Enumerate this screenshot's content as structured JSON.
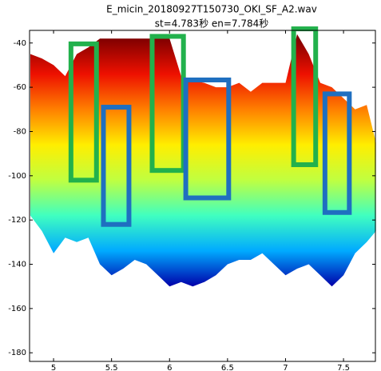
{
  "chart_data": {
    "type": "area",
    "title": "E_micin_20180927T150730_OKI_SF_A2.wav",
    "subtitle": "st=4.783秒 en=7.784秒",
    "x": [
      4.8,
      4.9,
      5.0,
      5.1,
      5.2,
      5.3,
      5.4,
      5.5,
      5.6,
      5.7,
      5.8,
      5.9,
      6.0,
      6.1,
      6.2,
      6.3,
      6.4,
      6.5,
      6.6,
      6.7,
      6.8,
      6.9,
      7.0,
      7.1,
      7.2,
      7.3,
      7.4,
      7.5,
      7.6,
      7.7,
      7.78
    ],
    "envelope": {
      "top": [
        -45,
        -47,
        -50,
        -55,
        -45,
        -42,
        -38,
        -38,
        -38,
        -38,
        -38,
        -38,
        -38,
        -55,
        -57,
        -58,
        -60,
        -60,
        -58,
        -62,
        -58,
        -58,
        -58,
        -36,
        -45,
        -58,
        -60,
        -65,
        -70,
        -68,
        -85
      ],
      "bottom": [
        -118,
        -125,
        -135,
        -128,
        -130,
        -128,
        -140,
        -145,
        -142,
        -138,
        -140,
        -145,
        -150,
        -148,
        -150,
        -148,
        -145,
        -140,
        -138,
        -138,
        -135,
        -140,
        -145,
        -142,
        -140,
        -145,
        -150,
        -145,
        -135,
        -130,
        -125
      ]
    },
    "colormap": [
      "#0000aa",
      "#00aaff",
      "#40ffc0",
      "#c0ff40",
      "#ffee00",
      "#ff8000",
      "#ee1000",
      "#800000"
    ],
    "annotation_boxes": [
      {
        "color": "#22b14c",
        "x": [
          5.15,
          5.37
        ],
        "y": [
          -102,
          -40.4
        ]
      },
      {
        "color": "#1f6fc0",
        "x": [
          5.43,
          5.65
        ],
        "y": [
          -122,
          -69
        ]
      },
      {
        "color": "#22b14c",
        "x": [
          5.85,
          6.12
        ],
        "y": [
          -97.6,
          -37
        ]
      },
      {
        "color": "#1f6fc0",
        "x": [
          6.14,
          6.51
        ],
        "y": [
          -110,
          -56.7
        ]
      },
      {
        "color": "#22b14c",
        "x": [
          7.07,
          7.26
        ],
        "y": [
          -95,
          -33.6
        ]
      },
      {
        "color": "#1f6fc0",
        "x": [
          7.34,
          7.55
        ],
        "y": [
          -116.6,
          -63
        ]
      }
    ],
    "xlim": [
      4.793,
      7.775
    ],
    "ylim": [
      -183.9,
      -34.3
    ],
    "xticks": [
      5,
      5.5,
      6,
      6.5,
      7,
      7.5
    ],
    "yticks": [
      -40,
      -60,
      -80,
      -100,
      -120,
      -140,
      -160,
      -180
    ],
    "grid": false
  }
}
